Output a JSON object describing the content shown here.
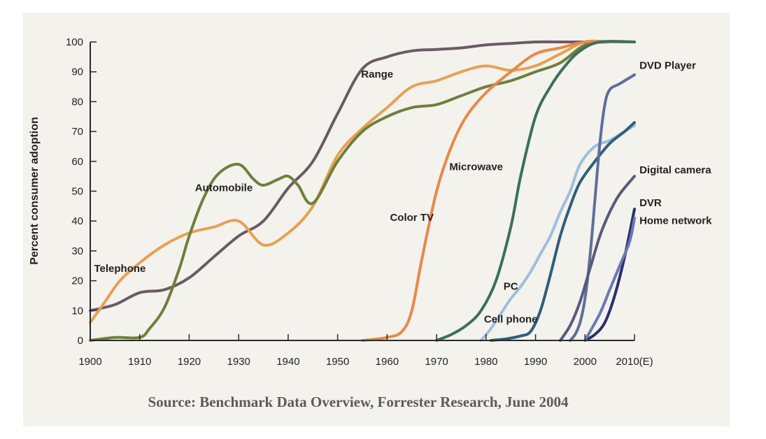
{
  "chart_data": {
    "type": "line",
    "title": "",
    "xlabel": "",
    "ylabel": "Percent consumer adoption",
    "xlim": [
      1900,
      2010
    ],
    "ylim": [
      0,
      100
    ],
    "x_ticks": [
      {
        "value": 1900,
        "label": "1900"
      },
      {
        "value": 1910,
        "label": "1910"
      },
      {
        "value": 1920,
        "label": "1920"
      },
      {
        "value": 1930,
        "label": "1930"
      },
      {
        "value": 1940,
        "label": "1940"
      },
      {
        "value": 1950,
        "label": "1950"
      },
      {
        "value": 1960,
        "label": "1960"
      },
      {
        "value": 1970,
        "label": "1970"
      },
      {
        "value": 1980,
        "label": "1980"
      },
      {
        "value": 1990,
        "label": "1990"
      },
      {
        "value": 2000,
        "label": "2000"
      },
      {
        "value": 2010,
        "label": "2010(E)"
      }
    ],
    "y_ticks": [
      0,
      10,
      20,
      30,
      40,
      50,
      60,
      70,
      80,
      90,
      100
    ],
    "grid": false,
    "source": "Source: Benchmark Data Overview, Forrester Research, June 2004",
    "series": [
      {
        "name": "Range",
        "color": "#6b5a66",
        "label_anchor": {
          "x": 1958,
          "y": 88
        },
        "x": [
          1900,
          1905,
          1910,
          1915,
          1920,
          1925,
          1930,
          1935,
          1940,
          1945,
          1950,
          1955,
          1960,
          1965,
          1970,
          1975,
          1980,
          1985,
          1990,
          1995,
          2000,
          2005,
          2010
        ],
        "y": [
          10,
          12,
          16,
          17,
          21,
          28,
          35,
          40,
          51,
          60,
          76,
          91,
          95,
          97,
          97.5,
          98,
          99,
          99.5,
          100,
          100,
          100,
          100,
          100
        ]
      },
      {
        "name": "Telephone",
        "color": "#e8a055",
        "label_anchor": {
          "x": 1906,
          "y": 23
        },
        "x": [
          1900,
          1903,
          1906,
          1910,
          1915,
          1920,
          1925,
          1930,
          1935,
          1940,
          1945,
          1950,
          1955,
          1960,
          1965,
          1970,
          1975,
          1980,
          1985,
          1990,
          1995,
          2000,
          2005,
          2010
        ],
        "y": [
          6,
          13,
          20,
          26,
          32,
          36,
          38,
          40,
          32,
          36,
          45,
          62,
          71,
          78,
          85,
          87,
          90,
          92,
          90.5,
          92,
          96,
          100,
          100,
          100
        ]
      },
      {
        "name": "Automobile",
        "color": "#6e7f3c",
        "label_anchor": {
          "x": 1927,
          "y": 50
        },
        "x": [
          1900,
          1905,
          1910,
          1912,
          1915,
          1918,
          1920,
          1923,
          1926,
          1930,
          1933,
          1935,
          1938,
          1940,
          1942,
          1945,
          1950,
          1955,
          1960,
          1965,
          1970,
          1975,
          1980,
          1985,
          1990,
          1995,
          2000,
          2005,
          2010
        ],
        "y": [
          0,
          1,
          1,
          4,
          11,
          24,
          35,
          48,
          56,
          59,
          54,
          52,
          54,
          55,
          52,
          46,
          60,
          70,
          75,
          78,
          79,
          82,
          85,
          87,
          90,
          93,
          99,
          100,
          100
        ]
      },
      {
        "name": "Color TV",
        "color": "#e8894a",
        "label_anchor": {
          "x": 1965,
          "y": 40
        },
        "x": [
          1955,
          1960,
          1963,
          1965,
          1967,
          1970,
          1973,
          1976,
          1980,
          1985,
          1990,
          1995,
          2000,
          2005,
          2010
        ],
        "y": [
          0,
          1,
          3,
          10,
          27,
          50,
          65,
          75,
          83,
          90,
          96,
          98,
          100,
          100,
          100
        ]
      },
      {
        "name": "Microwave",
        "color": "#3a7060",
        "label_anchor": {
          "x": 1978,
          "y": 57
        },
        "x": [
          1970,
          1973,
          1976,
          1979,
          1982,
          1985,
          1987,
          1990,
          1993,
          1996,
          1999,
          2003,
          2010
        ],
        "y": [
          0,
          2,
          5,
          10,
          20,
          38,
          55,
          75,
          85,
          92,
          97,
          100,
          100
        ]
      },
      {
        "name": "PC",
        "color": "#9fbde0",
        "label_anchor": {
          "x": 1985,
          "y": 17
        },
        "x": [
          1979,
          1981,
          1983,
          1985,
          1987,
          1989,
          1991,
          1993,
          1995,
          1997,
          1999,
          2002,
          2005,
          2008,
          2010
        ],
        "y": [
          0,
          4,
          9,
          14,
          18,
          23,
          29,
          35,
          43,
          50,
          59,
          65,
          67,
          70,
          72
        ]
      },
      {
        "name": "Cell phone",
        "color": "#2f5f7a",
        "label_anchor": {
          "x": 1985,
          "y": 6
        },
        "x": [
          1981,
          1984,
          1987,
          1989,
          1991,
          1993,
          1995,
          1997,
          1999,
          2002,
          2005,
          2008,
          2010
        ],
        "y": [
          0,
          0.5,
          1.5,
          3,
          10,
          22,
          35,
          45,
          53,
          60,
          66,
          70,
          73
        ]
      },
      {
        "name": "DVD Player",
        "color": "#5e6f9a",
        "label_anchor": {
          "x": 2011,
          "y": 91
        },
        "x": [
          1997,
          1998,
          1999,
          2000,
          2001,
          2002,
          2003,
          2004,
          2005,
          2007,
          2010
        ],
        "y": [
          0,
          2,
          6,
          14,
          28,
          47,
          66,
          79,
          84,
          86,
          89
        ]
      },
      {
        "name": "Digital camera",
        "color": "#5a5a7a",
        "label_anchor": {
          "x": 2011,
          "y": 56
        },
        "x": [
          1995,
          1997,
          1999,
          2001,
          2003,
          2005,
          2007,
          2010
        ],
        "y": [
          0,
          5,
          13,
          24,
          35,
          43,
          49,
          55
        ]
      },
      {
        "name": "DVR",
        "color": "#2b2f6b",
        "label_anchor": {
          "x": 2011,
          "y": 45
        },
        "x": [
          2000,
          2002,
          2004,
          2006,
          2008,
          2010
        ],
        "y": [
          0,
          2,
          6,
          15,
          28,
          44
        ]
      },
      {
        "name": "Home network",
        "color": "#6a78b5",
        "label_anchor": {
          "x": 2011,
          "y": 39
        },
        "x": [
          2000,
          2003,
          2005,
          2007,
          2009,
          2010
        ],
        "y": [
          0,
          9,
          17,
          25,
          33,
          41
        ]
      }
    ]
  }
}
